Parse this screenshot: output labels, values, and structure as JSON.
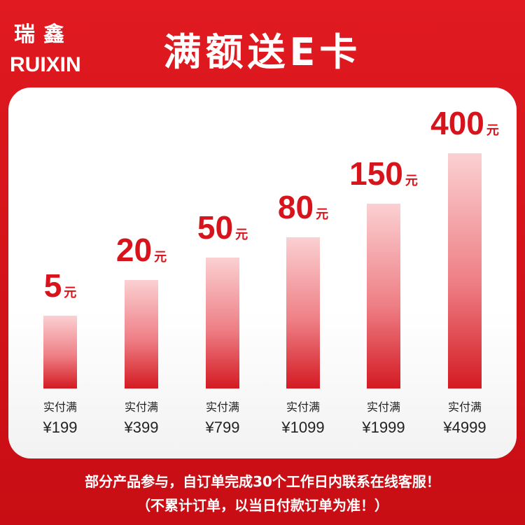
{
  "brand": {
    "logo": "瑞鑫",
    "name": "RUIXIN"
  },
  "title": "满额送E卡",
  "tiers": [
    {
      "reward": "5",
      "unit": "元",
      "condition": "实付满",
      "price": "¥199"
    },
    {
      "reward": "20",
      "unit": "元",
      "condition": "实付满",
      "price": "¥399"
    },
    {
      "reward": "50",
      "unit": "元",
      "condition": "实付满",
      "price": "¥799"
    },
    {
      "reward": "80",
      "unit": "元",
      "condition": "实付满",
      "price": "¥1099"
    },
    {
      "reward": "150",
      "unit": "元",
      "condition": "实付满",
      "price": "¥1999"
    },
    {
      "reward": "400",
      "unit": "元",
      "condition": "实付满",
      "price": "¥4999"
    }
  ],
  "footer": {
    "line1": "部分产品参与，自订单完成30个工作日内联系在线客服！",
    "line2": "（不累计订单，以当日付款订单为准！）"
  }
}
